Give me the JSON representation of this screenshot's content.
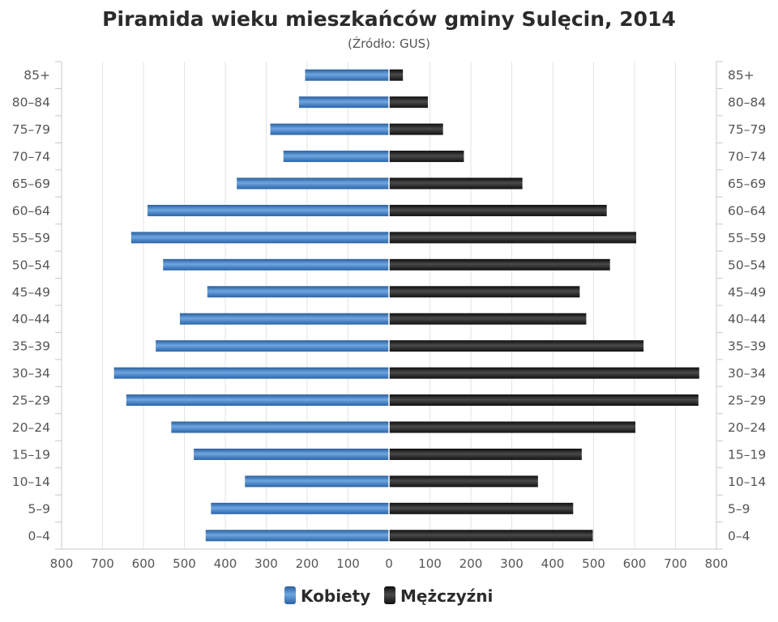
{
  "chart_data": {
    "type": "bar",
    "orientation": "horizontal-population-pyramid",
    "title": "Piramida wieku mieszkańców gminy Sulęcin, 2014",
    "subtitle": "(Źródło: GUS)",
    "categories": [
      "85+",
      "80–84",
      "75–79",
      "70–74",
      "65–69",
      "60–64",
      "55–59",
      "50–54",
      "45–49",
      "40–44",
      "35–39",
      "30–34",
      "25–29",
      "20–24",
      "15–19",
      "10–14",
      "5–9",
      "0–4"
    ],
    "series": [
      {
        "name": "Kobiety",
        "color": "#3a78bd",
        "side": "left",
        "values": [
          205,
          220,
          290,
          258,
          372,
          590,
          630,
          552,
          444,
          511,
          570,
          672,
          642,
          532,
          477,
          352,
          435,
          448
        ]
      },
      {
        "name": "Mężczyźni",
        "color": "#1c1c1c",
        "side": "right",
        "values": [
          34,
          95,
          132,
          183,
          326,
          532,
          604,
          540,
          466,
          482,
          622,
          758,
          756,
          602,
          471,
          364,
          450,
          498
        ]
      }
    ],
    "x_ticks": [
      "800",
      "700",
      "600",
      "500",
      "400",
      "300",
      "200",
      "100",
      "0",
      "100",
      "200",
      "300",
      "400",
      "500",
      "600",
      "700",
      "800"
    ],
    "xlim": [
      -800,
      800
    ],
    "grid": true,
    "legend": "bottom-center"
  }
}
